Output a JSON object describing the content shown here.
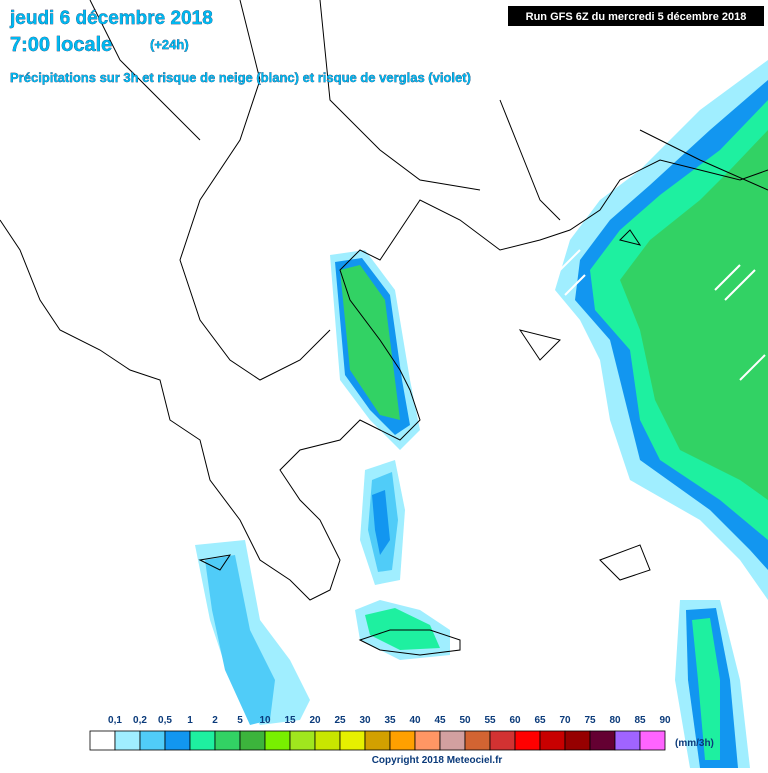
{
  "header": {
    "date": "jeudi 6 décembre 2018",
    "time": "7:00 locale",
    "lead": "(+24h)",
    "subtitle": "Précipitations sur 3h et risque de neige (blanc) et risque de verglas (violet)",
    "run": "Run GFS 6Z du mercredi 5 décembre 2018"
  },
  "legend": {
    "items": [
      {
        "label": "0,1",
        "color": "#ffffff"
      },
      {
        "label": "0,2",
        "color": "#a0eeff"
      },
      {
        "label": "0,5",
        "color": "#50ccf8"
      },
      {
        "label": "1",
        "color": "#1296f0"
      },
      {
        "label": "2",
        "color": "#1ef0a0"
      },
      {
        "label": "5",
        "color": "#32d264"
      },
      {
        "label": "10",
        "color": "#3cb43c"
      },
      {
        "label": "15",
        "color": "#78f000"
      },
      {
        "label": "20",
        "color": "#a0e61e"
      },
      {
        "label": "25",
        "color": "#c8e600"
      },
      {
        "label": "30",
        "color": "#e6f000"
      },
      {
        "label": "35",
        "color": "#d2a000"
      },
      {
        "label": "40",
        "color": "#ffa000"
      },
      {
        "label": "45",
        "color": "#ff9664"
      },
      {
        "label": "50",
        "color": "#d2a0a0"
      },
      {
        "label": "55",
        "color": "#d26432"
      },
      {
        "label": "60",
        "color": "#d23232"
      },
      {
        "label": "65",
        "color": "#ff0000"
      },
      {
        "label": "70",
        "color": "#c80000"
      },
      {
        "label": "75",
        "color": "#960000"
      },
      {
        "label": "80",
        "color": "#640032"
      },
      {
        "label": "85",
        "color": "#a064ff"
      },
      {
        "label": "90",
        "color": "#ff64ff"
      }
    ],
    "unit": "(mm/3h)"
  },
  "footer": {
    "copyright": "Copyright 2018 Meteociel.fr"
  }
}
